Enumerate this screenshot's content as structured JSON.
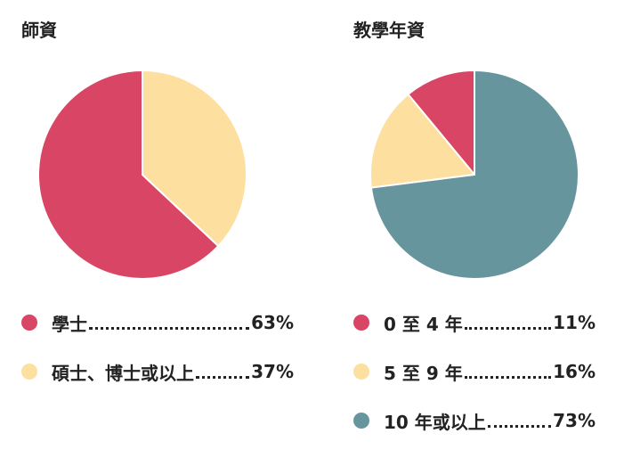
{
  "chart_data": [
    {
      "type": "pie",
      "title": "師資",
      "categories": [
        "學士",
        "碩士、博士或以上"
      ],
      "values": [
        63,
        37
      ],
      "value_labels": [
        "63%",
        "37%"
      ],
      "colors": [
        "#d84565",
        "#fde0a0"
      ]
    },
    {
      "type": "pie",
      "title": "教學年資",
      "categories": [
        "0 至 4 年",
        "5 至 9 年",
        "10 年或以上"
      ],
      "values": [
        11,
        16,
        73
      ],
      "value_labels": [
        "11%",
        "16%",
        "73%"
      ],
      "colors": [
        "#d84565",
        "#fde0a0",
        "#67959e"
      ]
    }
  ]
}
